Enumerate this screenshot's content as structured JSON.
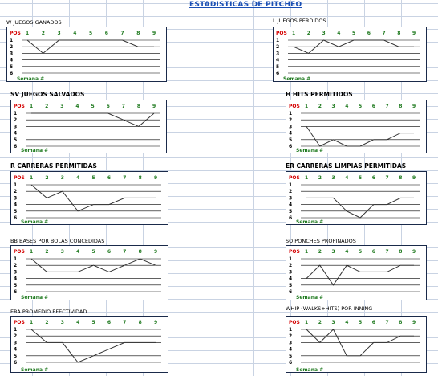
{
  "sheet_title": "ESTADISTICAS DE PITCHEO",
  "colors": {
    "title": "#1a4fb5",
    "pos_label": "#d40000",
    "x_ticks": "#1f7a1f",
    "frame": "#1a2a4a",
    "series": "#333333"
  },
  "chart_data": [
    {
      "type": "line",
      "title": "W  JUEGOS GANADOS",
      "ylabel": "POS",
      "xlabel": "Semana #",
      "categories": [
        "1",
        "2",
        "3",
        "4",
        "5",
        "6",
        "7",
        "8",
        "9"
      ],
      "ylim": [
        1,
        6
      ],
      "y_inverted": true,
      "y_ticks": [
        "1",
        "2",
        "3",
        "4",
        "5",
        "6"
      ],
      "grid": true,
      "values": [
        1,
        3,
        1,
        1,
        1,
        1,
        1,
        2,
        2
      ]
    },
    {
      "type": "line",
      "title": "L  JUEGOS PERDIDOS",
      "ylabel": "POS",
      "xlabel": "Semana #",
      "categories": [
        "1",
        "2",
        "3",
        "4",
        "5",
        "6",
        "7",
        "8",
        "9"
      ],
      "ylim": [
        1,
        6
      ],
      "y_inverted": true,
      "y_ticks": [
        "1",
        "2",
        "3",
        "4",
        "5",
        "6"
      ],
      "grid": true,
      "values": [
        2,
        3,
        1,
        2,
        1,
        1,
        1,
        2,
        2
      ]
    },
    {
      "type": "line",
      "title": "SV  JUEGOS SALVADOS",
      "ylabel": "POS",
      "xlabel": "Semana #",
      "categories": [
        "1",
        "2",
        "3",
        "4",
        "5",
        "6",
        "7",
        "8",
        "9"
      ],
      "ylim": [
        1,
        6
      ],
      "y_inverted": true,
      "y_ticks": [
        "1",
        "2",
        "3",
        "4",
        "5",
        "6"
      ],
      "grid": true,
      "values": [
        1,
        1,
        1,
        1,
        1,
        1,
        2,
        3,
        1
      ]
    },
    {
      "type": "line",
      "title": "H HITS PERMITIDOS",
      "ylabel": "POS",
      "xlabel": "Semana #",
      "categories": [
        "1",
        "2",
        "3",
        "4",
        "5",
        "6",
        "7",
        "8",
        "9"
      ],
      "ylim": [
        1,
        6
      ],
      "y_inverted": true,
      "y_ticks": [
        "1",
        "2",
        "3",
        "4",
        "5",
        "6"
      ],
      "grid": true,
      "values": [
        3,
        6,
        5,
        6,
        6,
        5,
        5,
        4,
        4
      ]
    },
    {
      "type": "line",
      "title": "R CARRERAS PERMITIDAS",
      "ylabel": "POS",
      "xlabel": "Semana #",
      "categories": [
        "1",
        "2",
        "3",
        "4",
        "5",
        "6",
        "7",
        "8",
        "9"
      ],
      "ylim": [
        1,
        6
      ],
      "y_inverted": true,
      "y_ticks": [
        "1",
        "2",
        "3",
        "4",
        "5",
        "6"
      ],
      "grid": true,
      "values": [
        1,
        3,
        2,
        5,
        4,
        4,
        3,
        3,
        3
      ]
    },
    {
      "type": "line",
      "title": "ER CARRERAS LIMPIAS PERMITIDAS",
      "ylabel": "POS",
      "xlabel": "Semana #",
      "categories": [
        "1",
        "2",
        "3",
        "4",
        "5",
        "6",
        "7",
        "8",
        "9"
      ],
      "ylim": [
        1,
        6
      ],
      "y_inverted": true,
      "y_ticks": [
        "1",
        "2",
        "3",
        "4",
        "5",
        "6"
      ],
      "grid": true,
      "values": [
        3,
        3,
        3,
        5,
        6,
        4,
        4,
        3,
        3
      ]
    },
    {
      "type": "line",
      "title": "BB BASES POR BOLAS CONCEDIDAS",
      "ylabel": "POS",
      "xlabel": "Semana #",
      "categories": [
        "1",
        "2",
        "3",
        "4",
        "5",
        "6",
        "7",
        "8",
        "9"
      ],
      "ylim": [
        1,
        6
      ],
      "y_inverted": true,
      "y_ticks": [
        "1",
        "2",
        "3",
        "4",
        "5",
        "6"
      ],
      "grid": true,
      "values": [
        1,
        3,
        3,
        3,
        2,
        3,
        2,
        1,
        2
      ]
    },
    {
      "type": "line",
      "title": "SO  PONCHES PROPINADOS",
      "ylabel": "POS",
      "xlabel": "Semana #",
      "categories": [
        "1",
        "2",
        "3",
        "4",
        "5",
        "6",
        "7",
        "8",
        "9"
      ],
      "ylim": [
        1,
        6
      ],
      "y_inverted": true,
      "y_ticks": [
        "1",
        "2",
        "3",
        "4",
        "5",
        "6"
      ],
      "grid": true,
      "values": [
        4,
        2,
        5,
        2,
        3,
        3,
        3,
        2,
        2
      ]
    },
    {
      "type": "line",
      "title": "ERA PROMEDIO  EFECTIVIDAD",
      "ylabel": "POS",
      "xlabel": "Semana #",
      "categories": [
        "1",
        "2",
        "3",
        "4",
        "5",
        "6",
        "7",
        "8",
        "9"
      ],
      "ylim": [
        1,
        6
      ],
      "y_inverted": true,
      "y_ticks": [
        "1",
        "2",
        "3",
        "4",
        "5",
        "6"
      ],
      "grid": true,
      "values": [
        1,
        3,
        3,
        6,
        5,
        4,
        3,
        3,
        3
      ]
    },
    {
      "type": "line",
      "title": "WHIP (WALKS+HITS)  POR INNING",
      "ylabel": "POS",
      "xlabel": "Semana #",
      "categories": [
        "1",
        "2",
        "3",
        "4",
        "5",
        "6",
        "7",
        "8",
        "9"
      ],
      "ylim": [
        1,
        6
      ],
      "y_inverted": true,
      "y_ticks": [
        "1",
        "2",
        "3",
        "4",
        "5",
        "6"
      ],
      "grid": true,
      "values": [
        1,
        3,
        1,
        5,
        5,
        3,
        3,
        2,
        2
      ]
    }
  ]
}
